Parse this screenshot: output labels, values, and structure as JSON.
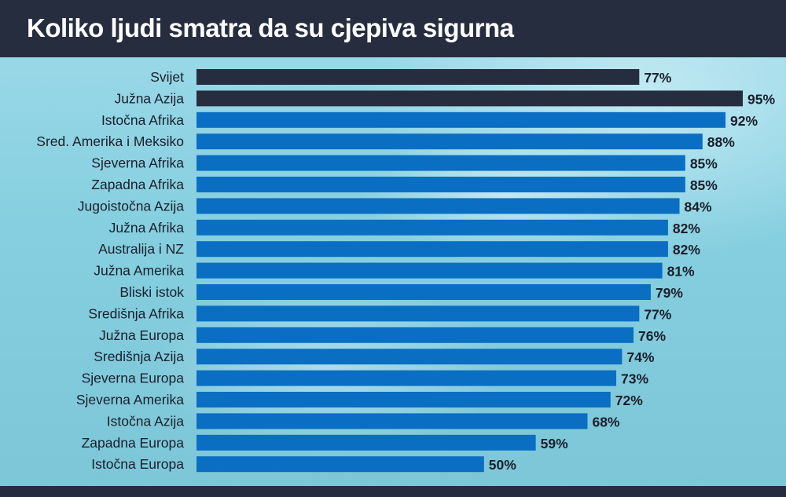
{
  "title": "Koliko ljudi smatra da su cjepiva sigurna",
  "colors": {
    "header": "#252d3f",
    "highlight_bar": "#252d3f",
    "bar": "#0a6fc2",
    "text": "#1a1f2c"
  },
  "chart_data": {
    "type": "bar",
    "orientation": "horizontal",
    "title": "Koliko ljudi smatra da su cjepiva sigurna",
    "categories": [
      "Svijet",
      "Južna Azija",
      "Istočna Afrika",
      "Sred. Amerika i Meksiko",
      "Sjeverna Afrika",
      "Zapadna Afrika",
      "Jugoistočna Azija",
      "Južna Afrika",
      "Australija i NZ",
      "Južna Amerika",
      "Bliski istok",
      "Središnja Afrika",
      "Južna Europa",
      "Središnja Azija",
      "Sjeverna Europa",
      "Sjeverna Amerika",
      "Istočna Azija",
      "Zapadna Europa",
      "Istočna Europa"
    ],
    "values": [
      77,
      95,
      92,
      88,
      85,
      85,
      84,
      82,
      82,
      81,
      79,
      77,
      76,
      74,
      73,
      72,
      68,
      59,
      50
    ],
    "value_labels": [
      "77%",
      "95%",
      "92%",
      "88%",
      "85%",
      "85%",
      "84%",
      "82%",
      "82%",
      "81%",
      "79%",
      "77%",
      "76%",
      "74%",
      "73%",
      "72%",
      "68%",
      "59%",
      "50%"
    ],
    "highlighted": [
      0,
      1
    ],
    "xlim": [
      0,
      95
    ],
    "unit": "%",
    "grid": false,
    "legend": "none"
  }
}
